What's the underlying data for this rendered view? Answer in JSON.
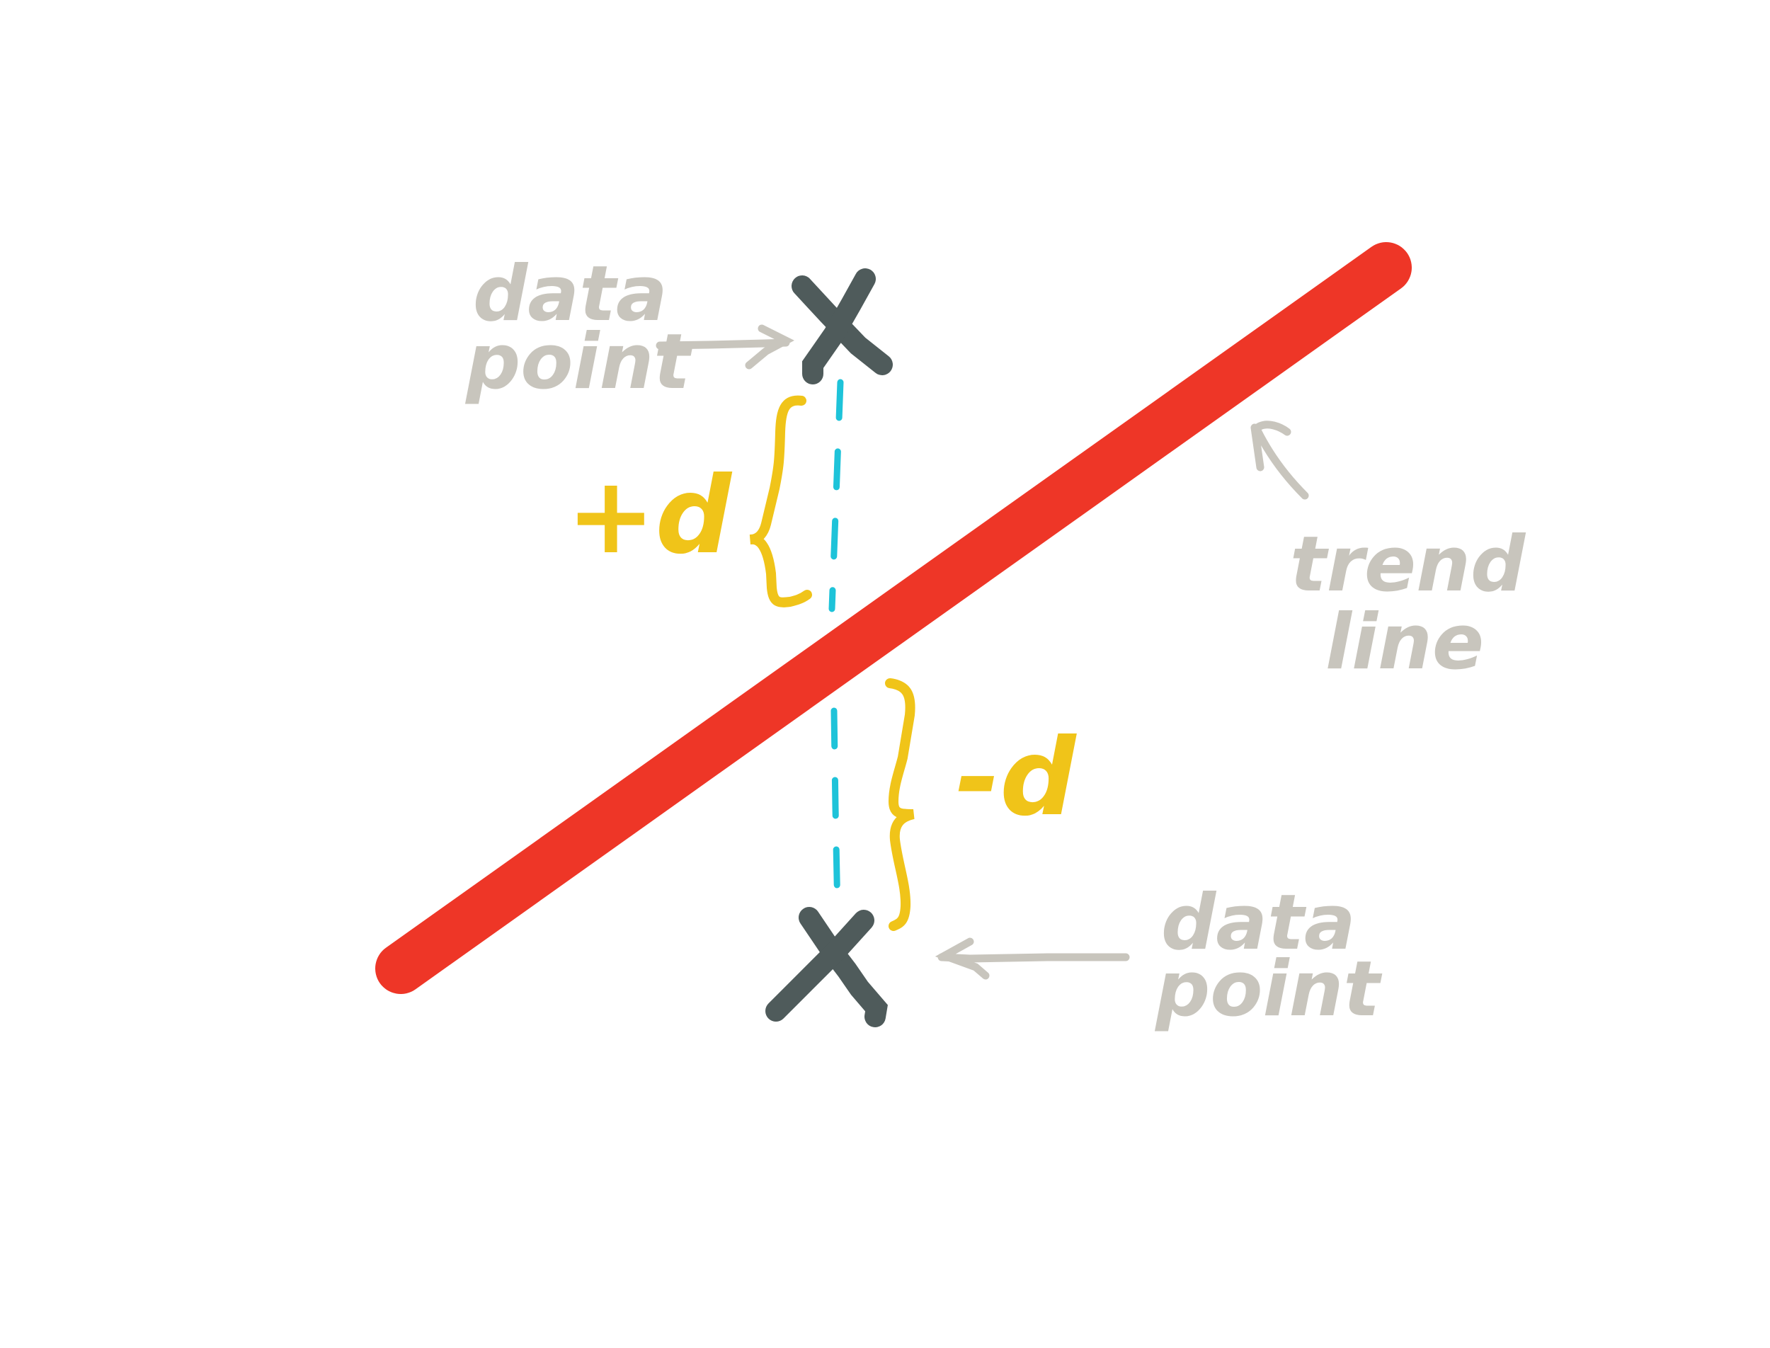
{
  "colors": {
    "background": "#ffffff",
    "trend_line": "#ee3627",
    "data_point": "#4f5b5b",
    "residual_dash": "#1ec3d9",
    "bracket": "#f0c419",
    "annotation": "#c8c5bd"
  },
  "labels": {
    "top_point_line1": "data",
    "top_point_line2": "point",
    "bottom_point_line1": "data",
    "bottom_point_line2": "point",
    "trend_line1": "trend",
    "trend_line2": "line",
    "positive_residual": "+d",
    "negative_residual": "-d"
  }
}
